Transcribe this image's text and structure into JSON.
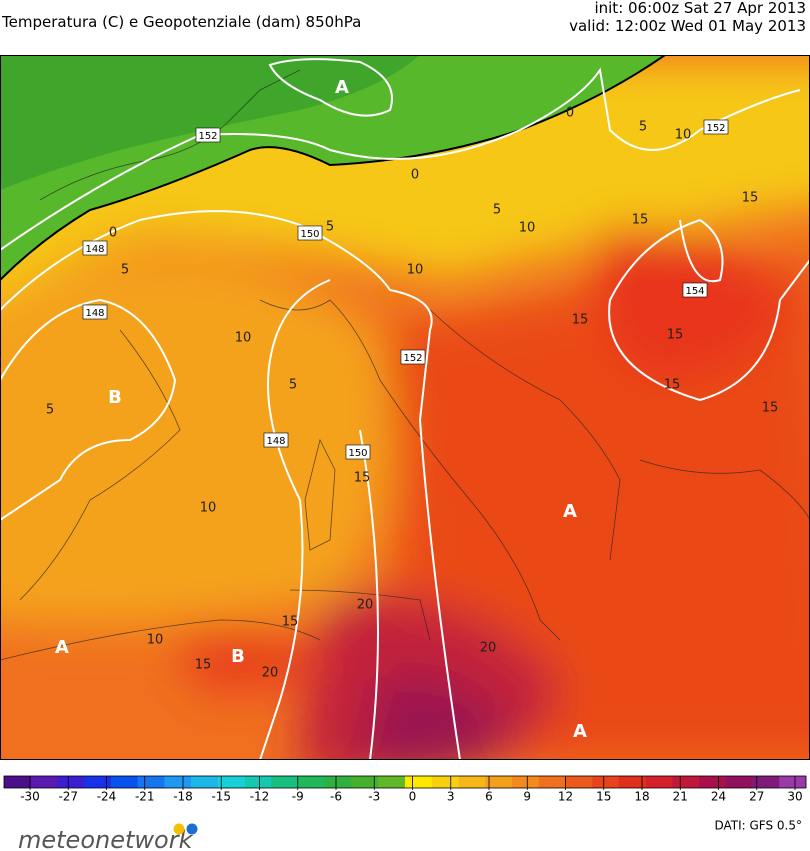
{
  "header": {
    "title": "Temperatura (C) e Geopotenziale (dam) 850hPa",
    "init": "init: 06:00z Sat 27 Apr 2013",
    "valid": "valid: 12:00z Wed 01 May 2013"
  },
  "map": {
    "pressure_centers": [
      "A",
      "B",
      "A",
      "A",
      "B",
      "A"
    ],
    "isohypse_labels": [
      152,
      152,
      150,
      148,
      148,
      154,
      152,
      148,
      150
    ],
    "isotherm_labels": [
      0,
      5,
      10,
      0,
      5,
      10,
      5,
      15,
      15,
      10,
      0,
      5,
      15,
      15,
      10,
      5,
      15,
      15,
      5,
      10,
      15,
      20,
      15,
      10,
      15,
      20,
      20
    ]
  },
  "colorbar": {
    "ticks": [
      -30,
      -27,
      -24,
      -21,
      -18,
      -15,
      -12,
      -9,
      -6,
      -3,
      0,
      3,
      6,
      9,
      12,
      15,
      18,
      21,
      24,
      27,
      30
    ]
  },
  "footer": {
    "logo": "meteonetwork",
    "source": "DATI: GFS 0.5°"
  }
}
